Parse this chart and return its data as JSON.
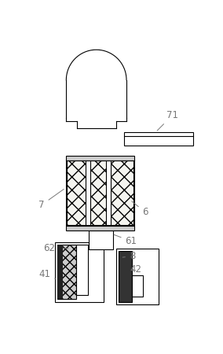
{
  "bg_color": "#ffffff",
  "lc": "#000000",
  "gray_label": "#777777",
  "fig_width": 2.84,
  "fig_height": 4.5,
  "dpi": 100,
  "lw": 0.8,
  "label_fs": 8.5
}
